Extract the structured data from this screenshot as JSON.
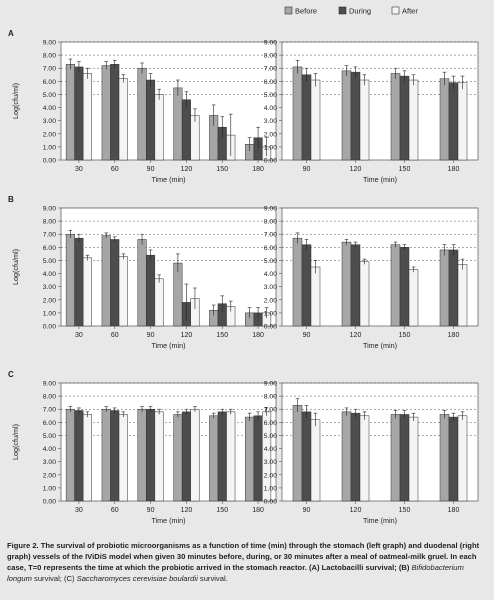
{
  "legend": [
    {
      "label": "Before",
      "color": "#a6a6a6"
    },
    {
      "label": "During",
      "color": "#4d4d4d"
    },
    {
      "label": "After",
      "color": "#f4f4f4"
    }
  ],
  "panel_letters": [
    "A",
    "B",
    "C"
  ],
  "y_axis_label": "Log(cfu/ml)",
  "x_axis_label": "Time (min)",
  "y_ticks": [
    "0.00",
    "1.00",
    "2.00",
    "3.00",
    "4.00",
    "5.00",
    "6.00",
    "7.00",
    "8.00",
    "9.00"
  ],
  "caption": {
    "lead": "Figure 2. The survival of probiotic microorganisms as a function of time (min) through the stomach (left graph) and duodenal (right graph) vessels of the IViDiS model when given 30 minutes before, during, or 30 minutes after a meal of oatmeal-milk gruel. In each case, T=0 represents the time at which the probiotic arrived in the stomach reactor. (A) Lactobacilli survival; (B) ",
    "italic1": "Bifidobacterium longum",
    "mid": " survival; (C) ",
    "italic2": "Saccharomyces cerevisiae boulardii",
    "tail": " survival."
  },
  "chart_data": [
    {
      "type": "bar",
      "panel": "A",
      "graph": "stomach",
      "categories": [
        "30",
        "60",
        "90",
        "120",
        "150",
        "180"
      ],
      "series": [
        {
          "name": "Before",
          "values": [
            7.3,
            7.2,
            7.0,
            5.5,
            3.4,
            1.2
          ],
          "errors": [
            0.4,
            0.3,
            0.4,
            0.6,
            0.8,
            0.5
          ]
        },
        {
          "name": "During",
          "values": [
            7.1,
            7.3,
            6.1,
            4.6,
            2.5,
            1.7
          ],
          "errors": [
            0.4,
            0.3,
            0.5,
            0.6,
            0.8,
            0.8
          ]
        },
        {
          "name": "After",
          "values": [
            6.6,
            6.2,
            5.0,
            3.4,
            1.9,
            1.0
          ],
          "errors": [
            0.4,
            0.3,
            0.4,
            0.5,
            1.6,
            0.7
          ]
        }
      ],
      "ylim": [
        0,
        9
      ],
      "xlabel": "Time (min)",
      "ylabel": "Log(cfu/ml)"
    },
    {
      "type": "bar",
      "panel": "A",
      "graph": "duodenal",
      "categories": [
        "90",
        "120",
        "150",
        "180"
      ],
      "series": [
        {
          "name": "Before",
          "values": [
            7.1,
            6.8,
            6.6,
            6.2
          ],
          "errors": [
            0.5,
            0.4,
            0.4,
            0.5
          ]
        },
        {
          "name": "During",
          "values": [
            6.5,
            6.7,
            6.4,
            5.9
          ],
          "errors": [
            0.5,
            0.4,
            0.4,
            0.5
          ]
        },
        {
          "name": "After",
          "values": [
            6.1,
            6.1,
            6.1,
            5.9
          ],
          "errors": [
            0.5,
            0.4,
            0.4,
            0.5
          ]
        }
      ],
      "ylim": [
        0,
        9
      ],
      "xlabel": "Time (min)",
      "ylabel": "Log(cfu/ml)"
    },
    {
      "type": "bar",
      "panel": "B",
      "graph": "stomach",
      "categories": [
        "30",
        "60",
        "90",
        "120",
        "150",
        "180"
      ],
      "series": [
        {
          "name": "Before",
          "values": [
            7.0,
            6.9,
            6.6,
            4.8,
            1.2,
            1.0
          ],
          "errors": [
            0.3,
            0.2,
            0.4,
            0.7,
            0.4,
            0.4
          ]
        },
        {
          "name": "During",
          "values": [
            6.7,
            6.6,
            5.4,
            1.8,
            1.7,
            1.0
          ],
          "errors": [
            0.3,
            0.2,
            0.4,
            1.4,
            0.6,
            0.4
          ]
        },
        {
          "name": "After",
          "values": [
            5.2,
            5.3,
            3.6,
            2.1,
            1.5,
            1.0
          ],
          "errors": [
            0.2,
            0.2,
            0.3,
            0.8,
            0.4,
            0.4
          ]
        }
      ],
      "ylim": [
        0,
        9
      ],
      "xlabel": "Time (min)",
      "ylabel": "Log(cfu/ml)"
    },
    {
      "type": "bar",
      "panel": "B",
      "graph": "duodenal",
      "categories": [
        "90",
        "120",
        "150",
        "180"
      ],
      "series": [
        {
          "name": "Before",
          "values": [
            6.7,
            6.4,
            6.2,
            5.8
          ],
          "errors": [
            0.4,
            0.2,
            0.2,
            0.4
          ]
        },
        {
          "name": "During",
          "values": [
            6.2,
            6.2,
            6.0,
            5.8
          ],
          "errors": [
            0.4,
            0.2,
            0.2,
            0.4
          ]
        },
        {
          "name": "After",
          "values": [
            4.5,
            4.9,
            4.3,
            4.7
          ],
          "errors": [
            0.5,
            0.2,
            0.2,
            0.4
          ]
        }
      ],
      "ylim": [
        0,
        9
      ],
      "xlabel": "Time (min)",
      "ylabel": "Log(cfu/ml)"
    },
    {
      "type": "bar",
      "panel": "C",
      "graph": "stomach",
      "categories": [
        "30",
        "60",
        "90",
        "120",
        "150",
        "180"
      ],
      "series": [
        {
          "name": "Before",
          "values": [
            7.0,
            7.0,
            7.0,
            6.6,
            6.5,
            6.4
          ],
          "errors": [
            0.2,
            0.2,
            0.2,
            0.2,
            0.2,
            0.3
          ]
        },
        {
          "name": "During",
          "values": [
            6.9,
            6.9,
            7.0,
            6.8,
            6.8,
            6.5
          ],
          "errors": [
            0.2,
            0.2,
            0.2,
            0.2,
            0.2,
            0.3
          ]
        },
        {
          "name": "After",
          "values": [
            6.6,
            6.6,
            6.8,
            7.0,
            6.8,
            6.8
          ],
          "errors": [
            0.2,
            0.2,
            0.2,
            0.2,
            0.2,
            0.3
          ]
        }
      ],
      "ylim": [
        0,
        9
      ],
      "xlabel": "Time (min)",
      "ylabel": "Log(cfu/ml)"
    },
    {
      "type": "bar",
      "panel": "C",
      "graph": "duodenal",
      "categories": [
        "90",
        "120",
        "150",
        "180"
      ],
      "series": [
        {
          "name": "Before",
          "values": [
            7.3,
            6.8,
            6.6,
            6.6
          ],
          "errors": [
            0.5,
            0.3,
            0.3,
            0.3
          ]
        },
        {
          "name": "During",
          "values": [
            6.8,
            6.7,
            6.6,
            6.4
          ],
          "errors": [
            0.5,
            0.3,
            0.3,
            0.3
          ]
        },
        {
          "name": "After",
          "values": [
            6.2,
            6.5,
            6.4,
            6.5
          ],
          "errors": [
            0.5,
            0.3,
            0.3,
            0.3
          ]
        }
      ],
      "ylim": [
        0,
        9
      ],
      "xlabel": "Time (min)",
      "ylabel": "Log(cfu/ml)"
    }
  ]
}
